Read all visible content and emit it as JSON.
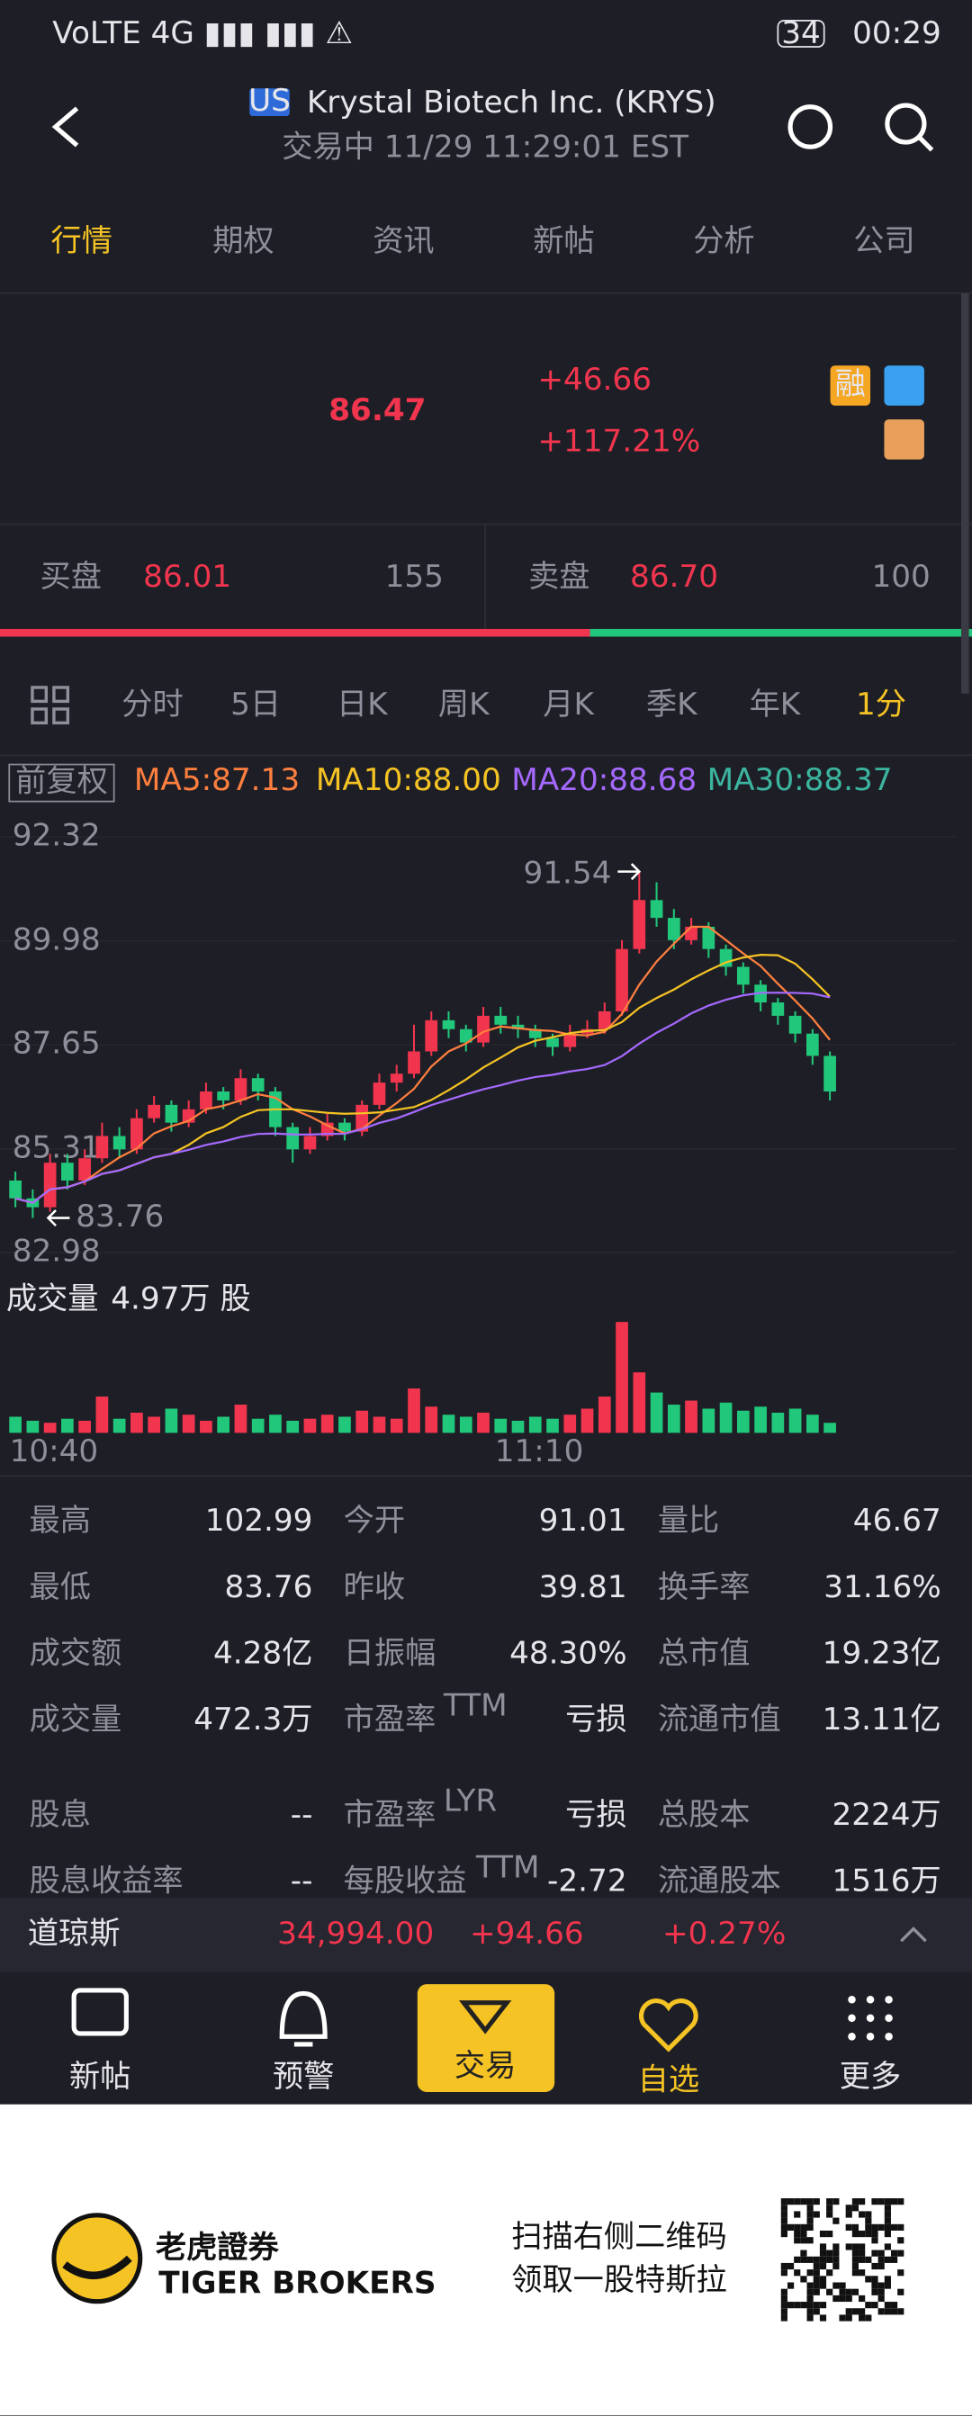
{
  "status": {
    "time": "00:29",
    "battery": "34"
  },
  "header": {
    "badge": "US",
    "title": "Krystal Biotech Inc. (KRYS)",
    "subtitle": "交易中 11/29 11:29:01 EST"
  },
  "tabs": [
    "行情",
    "期权",
    "资讯",
    "新帖",
    "分析",
    "公司"
  ],
  "quote": {
    "price": "86.47",
    "change": "+46.66",
    "change_pct": "+117.21%",
    "badge": "融"
  },
  "bid": {
    "label": "买盘",
    "price": "86.01",
    "size": "155"
  },
  "ask": {
    "label": "卖盘",
    "price": "86.70",
    "size": "100"
  },
  "chart_tabs": [
    "分时",
    "5日",
    "日K",
    "周K",
    "月K",
    "季K",
    "年K",
    "1分"
  ],
  "ma": {
    "adjust": "前复权",
    "items": [
      "MA5:87.13",
      "MA10:88.00",
      "MA20:88.68",
      "MA30:88.37"
    ]
  },
  "chart": {
    "ylim": [
      82.98,
      92.32
    ],
    "yticks": [
      92.32,
      89.98,
      87.65,
      85.31,
      82.98
    ],
    "high_label": 91.54,
    "low_label": 83.76,
    "open": [
      84.6,
      84.2,
      84.0,
      85.0,
      84.6,
      85.1,
      85.6,
      85.3,
      86.0,
      86.3,
      85.9,
      86.2,
      86.6,
      86.4,
      86.9,
      86.6,
      85.8,
      85.3,
      85.6,
      85.9,
      85.7,
      86.3,
      86.8,
      87.0,
      87.5,
      88.2,
      88.0,
      87.7,
      88.3,
      88.1,
      88.0,
      87.8,
      87.6,
      87.9,
      88.0,
      88.4,
      89.8,
      90.9,
      90.5,
      90.0,
      90.3,
      89.8,
      89.4,
      89.0,
      88.6,
      88.3,
      87.9,
      87.4
    ],
    "high": [
      84.8,
      84.4,
      85.2,
      85.2,
      85.3,
      85.9,
      85.8,
      86.2,
      86.5,
      86.4,
      86.4,
      86.8,
      86.7,
      87.1,
      87.0,
      86.7,
      85.9,
      85.8,
      86.1,
      86.0,
      86.4,
      87.0,
      87.2,
      88.1,
      88.4,
      88.4,
      88.1,
      88.5,
      88.5,
      88.3,
      88.1,
      87.9,
      88.1,
      88.2,
      88.6,
      90.0,
      91.54,
      91.3,
      90.7,
      90.5,
      90.4,
      89.9,
      89.5,
      89.1,
      88.7,
      88.4,
      88.0,
      87.5
    ],
    "low": [
      84.0,
      83.76,
      83.9,
      84.4,
      84.5,
      85.0,
      85.1,
      85.2,
      85.9,
      85.7,
      85.8,
      86.1,
      86.2,
      86.3,
      86.4,
      85.6,
      85.0,
      85.2,
      85.5,
      85.5,
      85.6,
      86.2,
      86.6,
      86.9,
      87.4,
      87.8,
      87.5,
      87.6,
      87.9,
      87.8,
      87.6,
      87.4,
      87.5,
      87.8,
      87.9,
      88.3,
      89.7,
      90.3,
      89.8,
      89.9,
      89.6,
      89.2,
      88.8,
      88.4,
      88.1,
      87.7,
      87.2,
      86.4
    ],
    "close": [
      84.2,
      84.0,
      85.0,
      84.6,
      85.1,
      85.6,
      85.3,
      86.0,
      86.3,
      85.9,
      86.2,
      86.6,
      86.4,
      86.9,
      86.6,
      85.8,
      85.3,
      85.6,
      85.9,
      85.7,
      86.3,
      86.8,
      87.0,
      87.5,
      88.2,
      88.0,
      87.7,
      88.3,
      88.1,
      88.0,
      87.8,
      87.6,
      87.9,
      88.0,
      88.4,
      89.8,
      90.9,
      90.5,
      90.0,
      90.3,
      89.8,
      89.4,
      89.0,
      88.6,
      88.3,
      87.9,
      87.4,
      86.6
    ],
    "volume_title": "成交量",
    "volume_text": "4.97万 股",
    "volume": [
      8,
      6,
      5,
      7,
      6,
      18,
      7,
      10,
      8,
      12,
      9,
      6,
      8,
      14,
      7,
      9,
      6,
      7,
      9,
      8,
      11,
      8,
      7,
      22,
      13,
      9,
      8,
      10,
      7,
      6,
      8,
      7,
      9,
      12,
      18,
      55,
      30,
      20,
      14,
      16,
      12,
      15,
      11,
      13,
      10,
      12,
      9,
      4.97
    ],
    "times": [
      "10:40",
      "11:10"
    ]
  },
  "stats": [
    [
      {
        "label": "最高",
        "value": "102.99"
      },
      {
        "label": "今开",
        "value": "91.01"
      },
      {
        "label": "量比",
        "value": "46.67"
      }
    ],
    [
      {
        "label": "最低",
        "value": "83.76"
      },
      {
        "label": "昨收",
        "value": "39.81"
      },
      {
        "label": "换手率",
        "value": "31.16%"
      }
    ],
    [
      {
        "label": "成交额",
        "value": "4.28亿"
      },
      {
        "label": "日振幅",
        "value": "48.30%"
      },
      {
        "label": "总市值",
        "value": "19.23亿"
      }
    ],
    [
      {
        "label": "成交量",
        "value": "472.3万"
      },
      {
        "label": "市盈率",
        "sup": "TTM",
        "value": "亏损"
      },
      {
        "label": "流通市值",
        "value": "13.11亿"
      }
    ],
    [
      {
        "label": "股息",
        "value": "--"
      },
      {
        "label": "市盈率",
        "sup": "LYR",
        "value": "亏损"
      },
      {
        "label": "总股本",
        "value": "2224万"
      }
    ],
    [
      {
        "label": "股息收益率",
        "value": "--"
      },
      {
        "label": "每股收益",
        "sup": "TTM",
        "value": "-2.72"
      },
      {
        "label": "流通股本",
        "value": "1516万"
      }
    ]
  ],
  "index": {
    "name": "道琼斯",
    "value": "34,994.00",
    "change": "+94.66",
    "pct": "+0.27%"
  },
  "nav": [
    "新帖",
    "预警",
    "交易",
    "自选",
    "更多"
  ],
  "ad": {
    "brand": "老虎證券",
    "brand_en": "TIGER BROKERS",
    "line1": "扫描右侧二维码",
    "line2": "领取一股特斯拉"
  }
}
